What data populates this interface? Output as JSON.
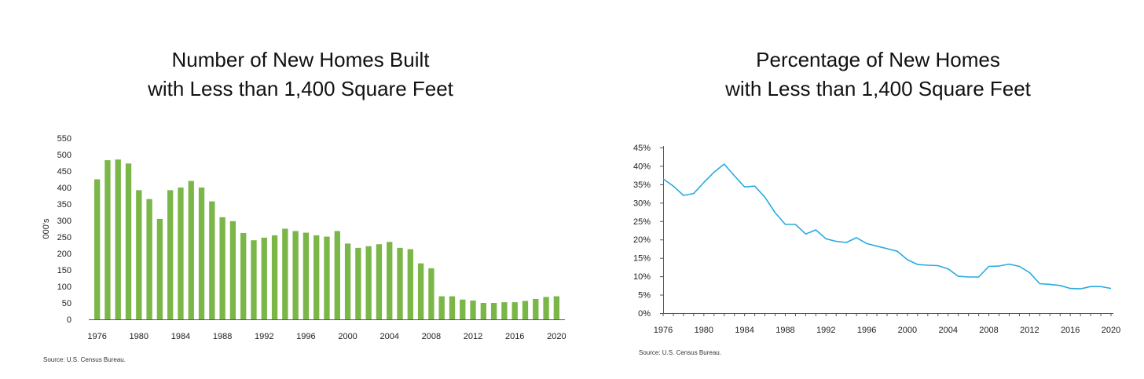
{
  "source_left": "Source: U.S. Census Bureau.",
  "source_right": "Source: U.S. Census Bureau.",
  "chart_data": [
    {
      "type": "bar",
      "title_lines": [
        "Number of New Homes Built",
        "with Less than 1,400 Square Feet"
      ],
      "ylabel": "000's",
      "ylim": [
        0,
        550
      ],
      "yticks": [
        0,
        50,
        100,
        150,
        200,
        250,
        300,
        350,
        400,
        450,
        500,
        550
      ],
      "xtick_labels": [
        "1976",
        "1980",
        "1984",
        "1988",
        "1992",
        "1996",
        "2000",
        "2004",
        "2008",
        "2012",
        "2016",
        "2020"
      ],
      "categories": [
        "1976",
        "1977",
        "1978",
        "1979",
        "1980",
        "1981",
        "1982",
        "1983",
        "1984",
        "1985",
        "1986",
        "1987",
        "1988",
        "1989",
        "1990",
        "1991",
        "1992",
        "1993",
        "1994",
        "1995",
        "1996",
        "1997",
        "1998",
        "1999",
        "2000",
        "2001",
        "2002",
        "2003",
        "2004",
        "2005",
        "2006",
        "2007",
        "2008",
        "2009",
        "2010",
        "2011",
        "2012",
        "2013",
        "2014",
        "2015",
        "2016",
        "2017",
        "2018",
        "2019",
        "2020"
      ],
      "values": [
        425,
        483,
        485,
        473,
        392,
        365,
        305,
        392,
        400,
        420,
        400,
        358,
        310,
        298,
        262,
        240,
        248,
        255,
        275,
        268,
        263,
        255,
        251,
        268,
        230,
        217,
        222,
        228,
        235,
        217,
        213,
        170,
        155,
        70,
        70,
        60,
        57,
        50,
        50,
        52,
        52,
        56,
        62,
        68,
        70
      ],
      "bar_color": "#7ab648",
      "grid": false
    },
    {
      "type": "line",
      "title_lines": [
        "Percentage of New Homes",
        "with Less than 1,400 Square Feet"
      ],
      "ylim": [
        0,
        45
      ],
      "yticks": [
        "0%",
        "5%",
        "10%",
        "15%",
        "20%",
        "25%",
        "30%",
        "35%",
        "40%",
        "45%"
      ],
      "xtick_labels": [
        "1976",
        "1980",
        "1984",
        "1988",
        "1992",
        "1996",
        "2000",
        "2004",
        "2008",
        "2012",
        "2016",
        "2020"
      ],
      "x": [
        1976,
        1977,
        1978,
        1979,
        1980,
        1981,
        1982,
        1983,
        1984,
        1985,
        1986,
        1987,
        1988,
        1989,
        1990,
        1991,
        1992,
        1993,
        1994,
        1995,
        1996,
        1997,
        1998,
        1999,
        2000,
        2001,
        2002,
        2003,
        2004,
        2005,
        2006,
        2007,
        2008,
        2009,
        2010,
        2011,
        2012,
        2013,
        2014,
        2015,
        2016,
        2017,
        2018,
        2019,
        2020
      ],
      "values": [
        36.5,
        34.5,
        32.0,
        32.5,
        35.5,
        38.3,
        40.5,
        37.3,
        34.3,
        34.5,
        31.5,
        27.3,
        24.1,
        24.1,
        21.5,
        22.6,
        20.2,
        19.5,
        19.2,
        20.5,
        18.9,
        18.2,
        17.5,
        16.8,
        14.5,
        13.2,
        13.0,
        12.9,
        12.0,
        10.0,
        9.8,
        9.8,
        12.7,
        12.8,
        13.3,
        12.7,
        11.0,
        8.0,
        7.8,
        7.5,
        6.7,
        6.6,
        7.2,
        7.2,
        6.7
      ],
      "line_color": "#29aadf",
      "grid": false
    }
  ]
}
